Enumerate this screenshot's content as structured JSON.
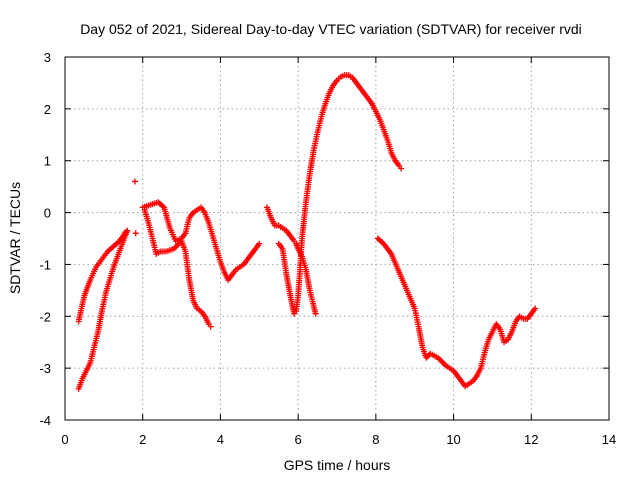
{
  "chart_data": {
    "type": "scatter",
    "title": "Day 052 of 2021, Sidereal Day-to-day VTEC variation (SDTVAR) for receiver rvdi",
    "xlabel": "GPS time / hours",
    "ylabel": "SDTVAR / TECUs",
    "xlim": [
      0,
      14
    ],
    "ylim": [
      -4,
      3
    ],
    "xticks": [
      "0",
      "2",
      "4",
      "6",
      "8",
      "10",
      "12",
      "14"
    ],
    "yticks": [
      "-4",
      "-3",
      "-2",
      "-1",
      "0",
      "1",
      "2",
      "3"
    ],
    "grid": true,
    "marker": "+",
    "color": "#ff0000",
    "series": [
      {
        "name": "track-a-upper",
        "x": [
          0.35,
          0.5,
          0.65,
          0.8,
          0.95,
          1.1,
          1.25,
          1.4,
          1.5,
          1.55,
          1.6
        ],
        "y": [
          -2.1,
          -1.6,
          -1.3,
          -1.05,
          -0.9,
          -0.75,
          -0.65,
          -0.55,
          -0.45,
          -0.38,
          -0.35
        ]
      },
      {
        "name": "track-a-lower",
        "x": [
          0.35,
          0.45,
          0.55,
          0.65,
          0.75,
          0.85,
          0.95,
          1.05,
          1.15,
          1.25,
          1.35,
          1.45,
          1.55,
          1.6
        ],
        "y": [
          -3.4,
          -3.2,
          -3.05,
          -2.9,
          -2.6,
          -2.3,
          -1.9,
          -1.55,
          -1.3,
          -1.05,
          -0.85,
          -0.65,
          -0.45,
          -0.35
        ]
      },
      {
        "name": "outliers",
        "x": [
          1.8,
          1.82
        ],
        "y": [
          0.6,
          -0.4
        ]
      },
      {
        "name": "track-b",
        "x": [
          2.0,
          2.2,
          2.4,
          2.55,
          2.7,
          2.85,
          3.0,
          3.1,
          3.2,
          3.3,
          3.4,
          3.5,
          3.6,
          3.7,
          3.8,
          3.9,
          4.0,
          4.1,
          4.2,
          4.3,
          4.4,
          4.6,
          4.8,
          5.0
        ],
        "y": [
          0.1,
          0.15,
          0.2,
          0.1,
          -0.3,
          -0.55,
          -0.5,
          -0.4,
          -0.1,
          0.0,
          0.05,
          0.1,
          0.0,
          -0.2,
          -0.45,
          -0.7,
          -0.95,
          -1.15,
          -1.3,
          -1.2,
          -1.1,
          -1.0,
          -0.8,
          -0.6
        ]
      },
      {
        "name": "track-c",
        "x": [
          2.05,
          2.15,
          2.25,
          2.35,
          2.45,
          2.6,
          2.8,
          3.0,
          3.1,
          3.2,
          3.3,
          3.4,
          3.5,
          3.6,
          3.7,
          3.75
        ],
        "y": [
          0.05,
          -0.2,
          -0.5,
          -0.8,
          -0.75,
          -0.75,
          -0.7,
          -0.55,
          -0.75,
          -1.3,
          -1.7,
          -1.85,
          -1.9,
          -2.0,
          -2.15,
          -2.2
        ]
      },
      {
        "name": "track-d",
        "x": [
          5.2,
          5.3,
          5.4,
          5.5,
          5.6,
          5.7,
          5.8,
          5.9,
          5.95,
          6.0,
          6.1,
          6.2,
          6.3,
          6.4,
          6.45
        ],
        "y": [
          0.1,
          -0.1,
          -0.25,
          -0.25,
          -0.3,
          -0.35,
          -0.45,
          -0.55,
          -0.6,
          -0.7,
          -0.85,
          -1.1,
          -1.5,
          -1.8,
          -1.95
        ]
      },
      {
        "name": "track-e",
        "x": [
          5.5,
          5.6,
          5.7,
          5.8,
          5.85,
          5.9,
          5.95,
          6.0,
          6.05,
          6.1,
          6.2,
          6.3,
          6.4,
          6.5,
          6.6,
          6.7,
          6.8,
          6.9,
          7.0,
          7.1,
          7.2,
          7.3,
          7.4,
          7.5,
          7.6,
          7.7,
          7.8,
          7.9,
          8.0,
          8.1,
          8.2,
          8.3,
          8.4,
          8.5,
          8.6,
          8.65
        ],
        "y": [
          -0.6,
          -0.7,
          -1.2,
          -1.6,
          -1.8,
          -1.95,
          -1.9,
          -1.6,
          -1.1,
          -0.5,
          0.2,
          0.75,
          1.2,
          1.55,
          1.85,
          2.1,
          2.3,
          2.45,
          2.55,
          2.62,
          2.65,
          2.65,
          2.6,
          2.5,
          2.4,
          2.3,
          2.2,
          2.1,
          1.95,
          1.8,
          1.6,
          1.4,
          1.15,
          1.0,
          0.9,
          0.85
        ]
      },
      {
        "name": "track-f",
        "x": [
          8.05,
          8.2,
          8.4,
          8.6,
          8.8,
          9.0,
          9.1,
          9.2,
          9.3,
          9.4,
          9.6,
          9.8,
          10.0,
          10.2,
          10.3,
          10.4,
          10.5,
          10.6,
          10.7,
          10.8,
          10.9,
          11.0,
          11.1,
          11.2,
          11.3,
          11.4,
          11.5,
          11.6,
          11.7,
          11.8,
          11.9,
          12.0,
          12.1
        ],
        "y": [
          -0.5,
          -0.6,
          -0.8,
          -1.15,
          -1.5,
          -1.85,
          -2.2,
          -2.6,
          -2.8,
          -2.72,
          -2.8,
          -2.95,
          -3.05,
          -3.25,
          -3.35,
          -3.3,
          -3.25,
          -3.15,
          -3.0,
          -2.7,
          -2.45,
          -2.3,
          -2.15,
          -2.25,
          -2.5,
          -2.45,
          -2.3,
          -2.1,
          -2.0,
          -2.05,
          -2.05,
          -1.95,
          -1.85
        ]
      }
    ]
  }
}
